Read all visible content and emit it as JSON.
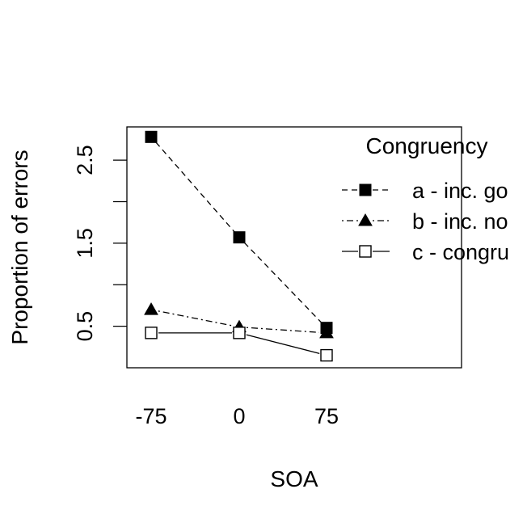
{
  "chart_data": {
    "type": "line",
    "title": "",
    "xlabel": "SOA",
    "ylabel": "Proportion of errors",
    "categories": [
      "-75",
      "0",
      "75"
    ],
    "y_ticks": [
      "0.5",
      "1.5",
      "2.5"
    ],
    "ylim": [
      0.0,
      2.9
    ],
    "grid": false,
    "legend": {
      "title": "Congruency",
      "placement": "top-right"
    },
    "series": [
      {
        "name": "a - inc. go",
        "values": [
          2.78,
          1.57,
          0.48
        ],
        "marker": "filled-square",
        "line": "dashed"
      },
      {
        "name": "b - inc. no",
        "values": [
          0.7,
          0.49,
          0.42
        ],
        "marker": "filled-triangle",
        "line": "dotdash"
      },
      {
        "name": "c - congru",
        "values": [
          0.42,
          0.42,
          0.15
        ],
        "marker": "open-square",
        "line": "solid"
      }
    ]
  }
}
